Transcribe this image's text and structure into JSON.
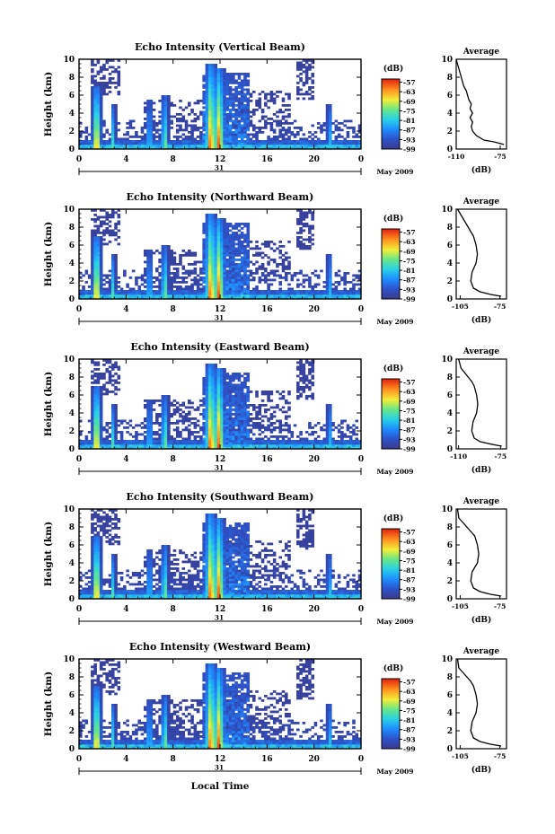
{
  "figure": {
    "xlabel": "Local Time",
    "date_label": "May 2009",
    "day_label": "31"
  },
  "chart_data": [
    {
      "type": "heatmap",
      "title": "Echo Intensity (Vertical Beam)",
      "ylabel": "Height (km)",
      "xticks": [
        "0",
        "4",
        "8",
        "12",
        "16",
        "20",
        "0"
      ],
      "yticks": [
        "0",
        "2",
        "4",
        "6",
        "8",
        "10"
      ],
      "xlim": [
        0,
        24
      ],
      "ylim": [
        0,
        10
      ],
      "colorbar": {
        "unit": "(dB)",
        "ticks": [
          "-57",
          "-63",
          "-69",
          "-75",
          "-81",
          "-87",
          "-93",
          "-99"
        ],
        "range": [
          -99,
          -55
        ]
      }
    },
    {
      "type": "heatmap",
      "title": "Echo Intensity (Northward Beam)",
      "ylabel": "Height (km)",
      "xticks": [
        "0",
        "4",
        "8",
        "12",
        "16",
        "20",
        "0"
      ],
      "yticks": [
        "0",
        "2",
        "4",
        "6",
        "8",
        "10"
      ],
      "xlim": [
        0,
        24
      ],
      "ylim": [
        0,
        10
      ],
      "colorbar": {
        "unit": "(dB)",
        "ticks": [
          "-57",
          "-63",
          "-69",
          "-75",
          "-81",
          "-87",
          "-93",
          "-99"
        ],
        "range": [
          -99,
          -55
        ]
      }
    },
    {
      "type": "heatmap",
      "title": "Echo Intensity (Eastward Beam)",
      "ylabel": "Height (km)",
      "xticks": [
        "0",
        "4",
        "8",
        "12",
        "16",
        "20",
        "0"
      ],
      "yticks": [
        "0",
        "2",
        "4",
        "6",
        "8",
        "10"
      ],
      "xlim": [
        0,
        24
      ],
      "ylim": [
        0,
        10
      ],
      "colorbar": {
        "unit": "(dB)",
        "ticks": [
          "-57",
          "-63",
          "-69",
          "-75",
          "-81",
          "-87",
          "-93",
          "-99"
        ],
        "range": [
          -99,
          -55
        ]
      }
    },
    {
      "type": "heatmap",
      "title": "Echo Intensity (Southward Beam)",
      "ylabel": "Height (km)",
      "xticks": [
        "0",
        "4",
        "8",
        "12",
        "16",
        "20",
        "0"
      ],
      "yticks": [
        "0",
        "2",
        "4",
        "6",
        "8",
        "10"
      ],
      "xlim": [
        0,
        24
      ],
      "ylim": [
        0,
        10
      ],
      "colorbar": {
        "unit": "(dB)",
        "ticks": [
          "-57",
          "-63",
          "-69",
          "-75",
          "-81",
          "-87",
          "-93",
          "-99"
        ],
        "range": [
          -99,
          -55
        ]
      }
    },
    {
      "type": "heatmap",
      "title": "Echo Intensity (Westward Beam)",
      "ylabel": "Height (km)",
      "xticks": [
        "0",
        "4",
        "8",
        "12",
        "16",
        "20",
        "0"
      ],
      "yticks": [
        "0",
        "2",
        "4",
        "6",
        "8",
        "10"
      ],
      "xlim": [
        0,
        24
      ],
      "ylim": [
        0,
        10
      ],
      "colorbar": {
        "unit": "(dB)",
        "ticks": [
          "-57",
          "-63",
          "-69",
          "-75",
          "-81",
          "-87",
          "-93",
          "-99"
        ],
        "range": [
          -99,
          -55
        ]
      }
    }
  ],
  "profiles": [
    {
      "type": "line",
      "title": "Average",
      "xlabel": "(dB)",
      "xticks": [
        "-110",
        "-75"
      ],
      "xlim": [
        -110,
        -70
      ],
      "yticks": [
        "0",
        "2",
        "4",
        "6",
        "8",
        "10"
      ],
      "ylim": [
        0,
        10
      ],
      "x": [
        -72,
        -80,
        -88,
        -94,
        -97,
        -98,
        -97,
        -99,
        -97,
        -99,
        -98,
        -100,
        -101,
        -102,
        -104,
        -105,
        -106,
        -107,
        -108,
        -109,
        -110
      ],
      "y": [
        0.5,
        0.8,
        1.0,
        1.5,
        2.0,
        2.5,
        3.0,
        3.5,
        4.0,
        4.5,
        5.0,
        5.5,
        6.0,
        6.5,
        7.0,
        7.5,
        8.0,
        8.5,
        9.0,
        9.5,
        10.0
      ]
    },
    {
      "type": "line",
      "title": "Average",
      "xlabel": "(dB)",
      "xticks": [
        "-105",
        "-75"
      ],
      "xlim": [
        -108,
        -70
      ],
      "yticks": [
        "0",
        "2",
        "4",
        "6",
        "8",
        "10"
      ],
      "ylim": [
        0,
        10
      ],
      "x": [
        -74,
        -82,
        -90,
        -95,
        -97,
        -96,
        -93,
        -92,
        -93,
        -95,
        -97,
        -99,
        -101,
        -103,
        -105,
        -107
      ],
      "y": [
        0.3,
        0.5,
        0.8,
        1.2,
        2.0,
        3.0,
        4.0,
        5.0,
        6.0,
        7.0,
        7.5,
        8.0,
        8.5,
        9.0,
        9.5,
        10.0
      ]
    },
    {
      "type": "line",
      "title": "Average",
      "xlabel": "(dB)",
      "xticks": [
        "-110",
        "-75"
      ],
      "xlim": [
        -112,
        -70
      ],
      "yticks": [
        "0",
        "2",
        "4",
        "6",
        "8",
        "10"
      ],
      "ylim": [
        0,
        10
      ],
      "x": [
        -74,
        -82,
        -92,
        -97,
        -99,
        -98,
        -95,
        -94,
        -95,
        -97,
        -99,
        -102,
        -105,
        -108,
        -110
      ],
      "y": [
        0.3,
        0.5,
        0.8,
        1.2,
        2.0,
        3.0,
        4.0,
        5.0,
        6.0,
        7.0,
        7.5,
        8.0,
        8.5,
        9.0,
        10.0
      ]
    },
    {
      "type": "line",
      "title": "Average",
      "xlabel": "(dB)",
      "xticks": [
        "-105",
        "-75"
      ],
      "xlim": [
        -108,
        -70
      ],
      "yticks": [
        "0",
        "2",
        "4",
        "6",
        "8",
        "10"
      ],
      "ylim": [
        0,
        10
      ],
      "x": [
        -74,
        -82,
        -90,
        -95,
        -97,
        -96,
        -92,
        -91,
        -92,
        -94,
        -97,
        -100,
        -103,
        -106,
        -107
      ],
      "y": [
        0.3,
        0.5,
        0.8,
        1.2,
        2.0,
        3.0,
        4.0,
        5.0,
        6.0,
        7.0,
        7.5,
        8.0,
        8.5,
        9.0,
        10.0
      ]
    },
    {
      "type": "line",
      "title": "Average",
      "xlabel": "(dB)",
      "xticks": [
        "-105",
        "-75"
      ],
      "xlim": [
        -108,
        -70
      ],
      "yticks": [
        "0",
        "2",
        "4",
        "6",
        "8",
        "10"
      ],
      "ylim": [
        0,
        10
      ],
      "x": [
        -74,
        -82,
        -90,
        -95,
        -97,
        -96,
        -93,
        -92,
        -93,
        -95,
        -97,
        -100,
        -103,
        -106,
        -107
      ],
      "y": [
        0.3,
        0.5,
        0.8,
        1.2,
        2.0,
        3.0,
        4.0,
        5.0,
        6.0,
        7.0,
        7.5,
        8.0,
        8.5,
        9.0,
        10.0
      ]
    }
  ]
}
